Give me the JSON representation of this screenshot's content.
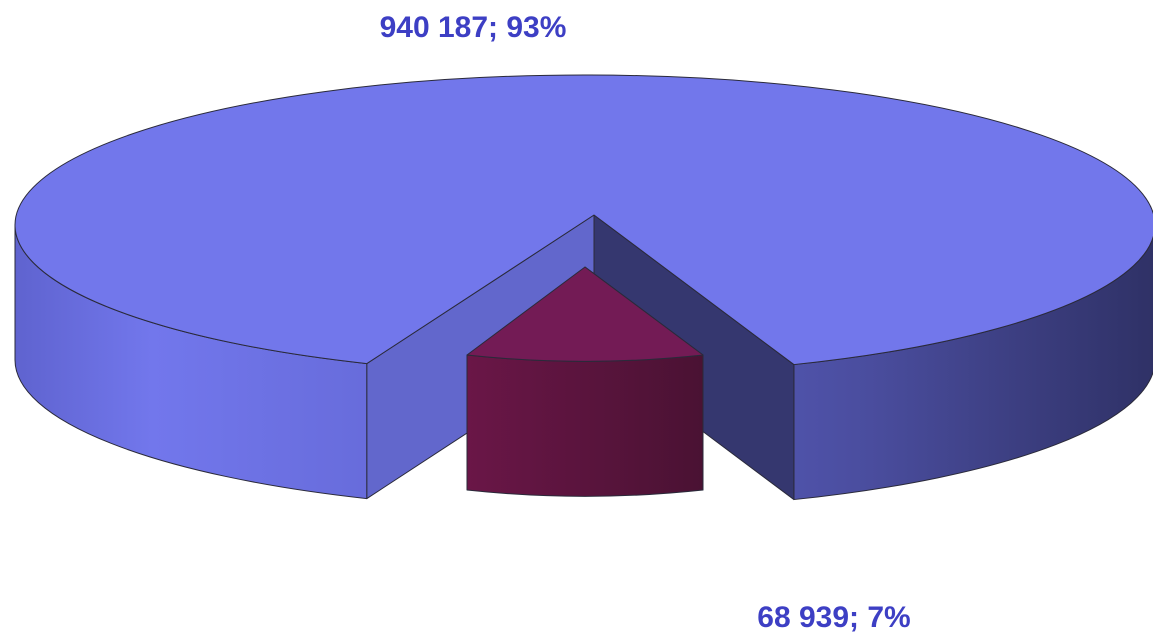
{
  "chart_data": {
    "type": "pie",
    "style": "3d-exploded",
    "title": "",
    "legend": "none",
    "categories": [
      "",
      ""
    ],
    "values": [
      940187,
      68939
    ],
    "percentages": [
      93,
      7
    ],
    "data_labels": [
      "940 187; 93%",
      "68 939; 7%"
    ],
    "colors": [
      "#7277eb",
      "#731b55"
    ],
    "label_color": "#3d3fc4"
  }
}
